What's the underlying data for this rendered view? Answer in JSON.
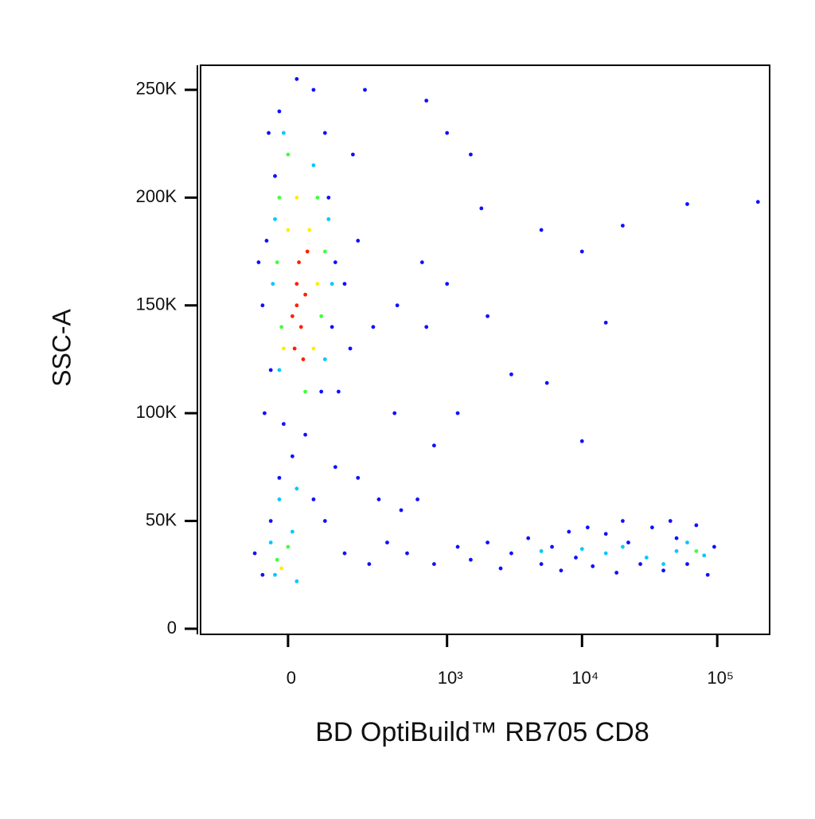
{
  "chart_data": {
    "type": "scatter",
    "xlabel": "BD OptiBuild™ RB705 CD8",
    "ylabel": "SSC-A",
    "xscale": "asinh",
    "xlim": [
      -282,
      244000
    ],
    "ylim": [
      -2600,
      261400
    ],
    "xticks": [
      0,
      {
        "value": 1000,
        "label": "10³"
      },
      {
        "value": 10000,
        "label": "10⁴"
      },
      {
        "value": 100000,
        "label": "10⁵"
      }
    ],
    "yticks": [
      0,
      {
        "value": 50000,
        "label": "50K"
      },
      {
        "value": 100000,
        "label": "100K"
      },
      {
        "value": 150000,
        "label": "150K"
      },
      {
        "value": 200000,
        "label": "200K"
      },
      {
        "value": 250000,
        "label": "250K"
      }
    ],
    "series": [
      {
        "color": "#1010ff",
        "x": [
          -60,
          -50,
          -40,
          -30,
          -55,
          110,
          120,
          100,
          90,
          60,
          20,
          -20,
          150,
          170,
          200,
          80,
          -10,
          130,
          270,
          420,
          650,
          180,
          230,
          -45,
          -70,
          40,
          10,
          -20,
          60,
          120,
          200,
          300,
          450,
          600,
          90,
          -80,
          -60,
          -40,
          150,
          250,
          350,
          500,
          800,
          1200,
          1500,
          2000,
          2500,
          3000,
          4000,
          5000,
          6000,
          7000,
          8000,
          9000,
          12000,
          15000,
          18000,
          22000,
          27000,
          33000,
          40000,
          50000,
          60000,
          70000,
          85000,
          95000,
          20000,
          11000,
          45000,
          1000,
          1500,
          700,
          1800,
          5000,
          10000,
          20000,
          60000,
          200000,
          15000,
          3000,
          5500,
          10000,
          800,
          1200,
          1000,
          2000,
          700,
          400
        ],
        "y": [
          150000,
          180000,
          120000,
          210000,
          100000,
          140000,
          170000,
          200000,
          230000,
          250000,
          255000,
          240000,
          160000,
          130000,
          180000,
          110000,
          95000,
          110000,
          140000,
          150000,
          170000,
          220000,
          250000,
          230000,
          170000,
          90000,
          80000,
          70000,
          60000,
          75000,
          70000,
          60000,
          55000,
          60000,
          50000,
          35000,
          25000,
          50000,
          35000,
          30000,
          40000,
          35000,
          30000,
          38000,
          32000,
          40000,
          28000,
          35000,
          42000,
          30000,
          38000,
          27000,
          45000,
          33000,
          29000,
          44000,
          26000,
          40000,
          30000,
          47000,
          27000,
          42000,
          30000,
          48000,
          25000,
          38000,
          50000,
          47000,
          50000,
          230000,
          220000,
          245000,
          195000,
          185000,
          175000,
          187000,
          197000,
          198000,
          142000,
          118000,
          114000,
          87000,
          85000,
          100000,
          160000,
          145000,
          140000,
          100000
        ]
      },
      {
        "color": "#00c8ff",
        "x": [
          -30,
          100,
          -20,
          90,
          -10,
          60,
          -35,
          110,
          -20,
          20,
          -40,
          10,
          -30,
          20,
          15000,
          20000,
          30000,
          50000,
          60000,
          80000,
          10000,
          5000,
          40000
        ],
        "y": [
          190000,
          190000,
          120000,
          125000,
          230000,
          215000,
          160000,
          160000,
          60000,
          65000,
          40000,
          45000,
          25000,
          22000,
          35000,
          38000,
          33000,
          36000,
          40000,
          34000,
          37000,
          36000,
          30000
        ]
      },
      {
        "color": "#40ff40",
        "x": [
          -20,
          70,
          -15,
          80,
          0,
          40,
          -25,
          90,
          -25,
          0,
          70000
        ],
        "y": [
          200000,
          200000,
          140000,
          145000,
          220000,
          110000,
          170000,
          175000,
          32000,
          38000,
          36000
        ]
      },
      {
        "color": "#ffee00",
        "x": [
          0,
          50,
          -10,
          60,
          20,
          70,
          -15
        ],
        "y": [
          185000,
          185000,
          130000,
          130000,
          200000,
          160000,
          28000
        ]
      },
      {
        "color": "#ff2000",
        "x": [
          20,
          40,
          10,
          30,
          25,
          45,
          15,
          35,
          20
        ],
        "y": [
          160000,
          155000,
          145000,
          140000,
          170000,
          175000,
          130000,
          125000,
          150000
        ]
      }
    ]
  }
}
